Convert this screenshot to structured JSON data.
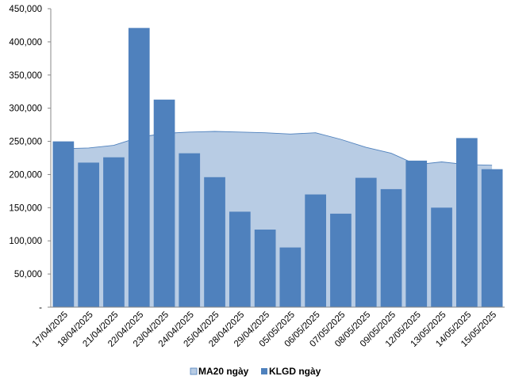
{
  "chart_data": {
    "type": "bar",
    "categories": [
      "17/04/2025",
      "18/04/2025",
      "21/04/2025",
      "22/04/2025",
      "23/04/2025",
      "24/04/2025",
      "25/04/2025",
      "28/04/2025",
      "29/04/2025",
      "05/05/2025",
      "06/05/2025",
      "07/05/2025",
      "08/05/2025",
      "09/05/2025",
      "12/05/2025",
      "13/05/2025",
      "14/05/2025",
      "15/05/2025"
    ],
    "series": [
      {
        "name": "MA20 ngày",
        "kind": "area",
        "color": "#b8cce4",
        "edge_color": "#4f81bd",
        "values": [
          239000,
          240000,
          244000,
          256000,
          262000,
          264000,
          265000,
          264000,
          263000,
          261000,
          263000,
          253000,
          241000,
          232000,
          215000,
          219000,
          215000,
          214000
        ]
      },
      {
        "name": "KLGD ngày",
        "kind": "bar",
        "color": "#4f81bd",
        "values": [
          250000,
          218000,
          226000,
          421000,
          313000,
          232000,
          196000,
          144000,
          117000,
          90000,
          170000,
          141000,
          195000,
          178000,
          221000,
          150000,
          255000,
          208000
        ]
      }
    ],
    "ylim": [
      0,
      450000
    ],
    "yticks": [
      0,
      50000,
      100000,
      150000,
      200000,
      250000,
      300000,
      350000,
      400000,
      450000
    ],
    "ytick_labels": [
      "-",
      "50,000",
      "100,000",
      "150,000",
      "200,000",
      "250,000",
      "300,000",
      "350,000",
      "400,000",
      "450,000"
    ],
    "grid": false,
    "legend_position": "bottom"
  }
}
